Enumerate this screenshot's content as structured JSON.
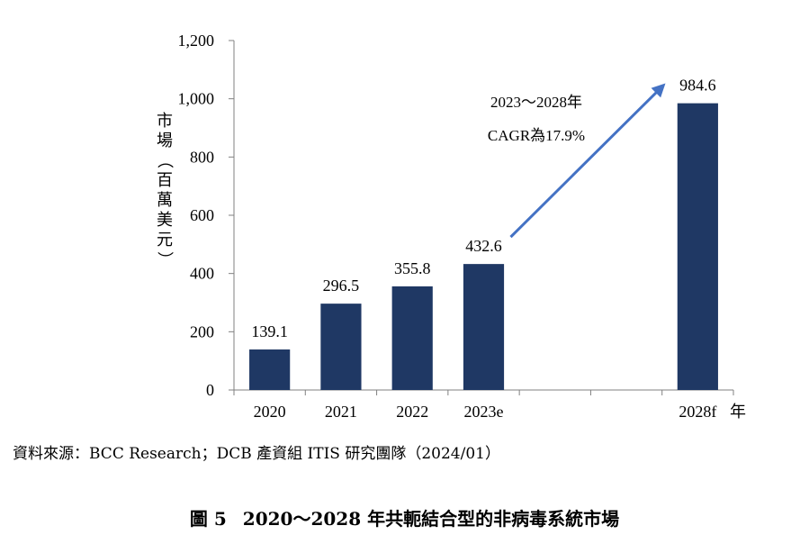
{
  "chart_data": {
    "type": "bar",
    "categories": [
      "2020",
      "2021",
      "2022",
      "2023e",
      "",
      "",
      "2028f"
    ],
    "values": [
      139.1,
      296.5,
      355.8,
      432.6,
      null,
      null,
      984.6
    ],
    "value_labels": [
      "139.1",
      "296.5",
      "355.8",
      "432.6",
      "",
      "",
      "984.6"
    ],
    "ylim": [
      0,
      1200
    ],
    "y_ticks": [
      "0",
      "200",
      "400",
      "600",
      "800",
      "1,000",
      "1,200"
    ],
    "y_tick_values": [
      0,
      200,
      400,
      600,
      800,
      1000,
      1200
    ],
    "ylabel": "市場（百萬美元）",
    "xlabel": "年",
    "bar_color": "#1f3864",
    "arrow_color": "#4472c4",
    "annotation": {
      "line1": "2023～2028年",
      "line2": "CAGR為17.9%",
      "from_category_index": 3,
      "to_category_index": 6
    },
    "legend": "none",
    "grid": false
  },
  "source": "資料來源：BCC Research；DCB 產資組 ITIS 研究團隊（2024/01）",
  "caption": {
    "number": "圖 5",
    "title": "2020～2028 年共軛結合型的非病毒系統市場"
  }
}
